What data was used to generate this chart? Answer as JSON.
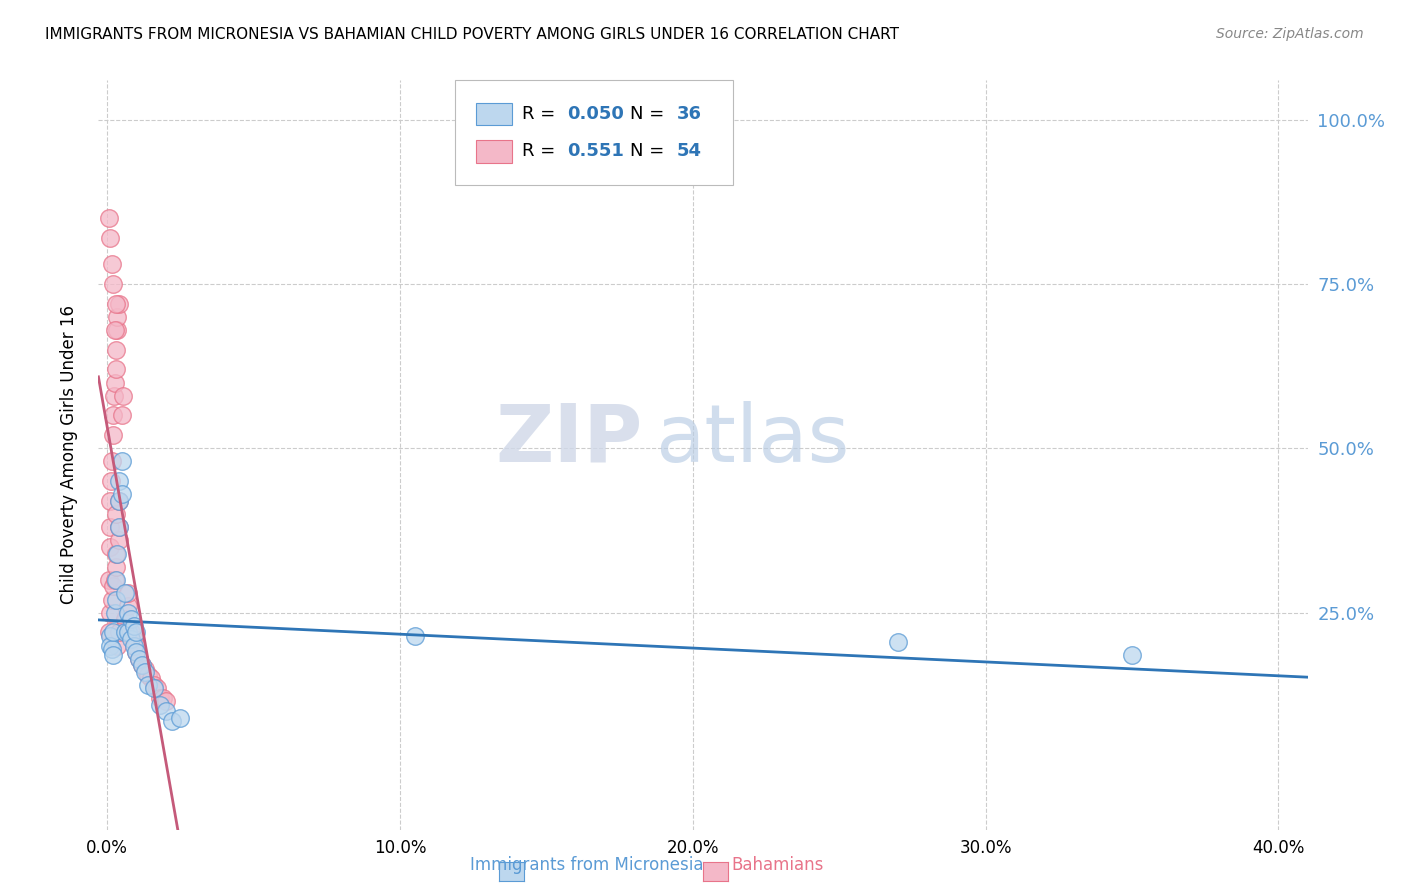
{
  "title": "IMMIGRANTS FROM MICRONESIA VS BAHAMIAN CHILD POVERTY AMONG GIRLS UNDER 16 CORRELATION CHART",
  "source": "Source: ZipAtlas.com",
  "ylabel": "Child Poverty Among Girls Under 16",
  "xlabel_ticks": [
    "0.0%",
    "10.0%",
    "20.0%",
    "30.0%",
    "40.0%"
  ],
  "xlabel_tick_vals": [
    0.0,
    0.1,
    0.2,
    0.3,
    0.4
  ],
  "ylabel_ticks": [
    "100.0%",
    "75.0%",
    "50.0%",
    "25.0%"
  ],
  "ylabel_tick_vals": [
    1.0,
    0.75,
    0.5,
    0.25
  ],
  "xlim": [
    -0.003,
    0.41
  ],
  "ylim": [
    -0.08,
    1.06
  ],
  "blue_color": "#5b9bd5",
  "pink_color": "#e8748a",
  "blue_fill": "#bdd7ee",
  "pink_fill": "#f4b8c8",
  "trend_blue": "#2e75b6",
  "trend_pink": "#c55a7a",
  "watermark_zip": "ZIP",
  "watermark_atlas": "atlas",
  "blue_scatter": [
    [
      0.0008,
      0.215
    ],
    [
      0.001,
      0.2
    ],
    [
      0.0015,
      0.195
    ],
    [
      0.002,
      0.22
    ],
    [
      0.002,
      0.185
    ],
    [
      0.0025,
      0.25
    ],
    [
      0.003,
      0.3
    ],
    [
      0.003,
      0.27
    ],
    [
      0.0035,
      0.34
    ],
    [
      0.004,
      0.42
    ],
    [
      0.004,
      0.45
    ],
    [
      0.004,
      0.38
    ],
    [
      0.005,
      0.48
    ],
    [
      0.005,
      0.43
    ],
    [
      0.006,
      0.22
    ],
    [
      0.006,
      0.28
    ],
    [
      0.007,
      0.25
    ],
    [
      0.007,
      0.22
    ],
    [
      0.008,
      0.24
    ],
    [
      0.008,
      0.21
    ],
    [
      0.009,
      0.23
    ],
    [
      0.009,
      0.2
    ],
    [
      0.01,
      0.22
    ],
    [
      0.01,
      0.19
    ],
    [
      0.011,
      0.18
    ],
    [
      0.012,
      0.17
    ],
    [
      0.013,
      0.16
    ],
    [
      0.014,
      0.14
    ],
    [
      0.016,
      0.135
    ],
    [
      0.018,
      0.11
    ],
    [
      0.02,
      0.1
    ],
    [
      0.022,
      0.085
    ],
    [
      0.025,
      0.09
    ],
    [
      0.105,
      0.215
    ],
    [
      0.27,
      0.205
    ],
    [
      0.35,
      0.185
    ]
  ],
  "pink_scatter": [
    [
      0.0005,
      0.3
    ],
    [
      0.0008,
      0.35
    ],
    [
      0.001,
      0.38
    ],
    [
      0.001,
      0.42
    ],
    [
      0.0012,
      0.45
    ],
    [
      0.0015,
      0.48
    ],
    [
      0.002,
      0.52
    ],
    [
      0.002,
      0.55
    ],
    [
      0.0022,
      0.58
    ],
    [
      0.0025,
      0.6
    ],
    [
      0.003,
      0.62
    ],
    [
      0.003,
      0.65
    ],
    [
      0.0032,
      0.68
    ],
    [
      0.0035,
      0.7
    ],
    [
      0.004,
      0.72
    ],
    [
      0.0005,
      0.22
    ],
    [
      0.001,
      0.25
    ],
    [
      0.0015,
      0.27
    ],
    [
      0.002,
      0.29
    ],
    [
      0.0025,
      0.3
    ],
    [
      0.003,
      0.32
    ],
    [
      0.003,
      0.34
    ],
    [
      0.004,
      0.36
    ],
    [
      0.004,
      0.38
    ],
    [
      0.005,
      0.55
    ],
    [
      0.0055,
      0.58
    ],
    [
      0.006,
      0.22
    ],
    [
      0.006,
      0.24
    ],
    [
      0.007,
      0.26
    ],
    [
      0.007,
      0.28
    ],
    [
      0.008,
      0.22
    ],
    [
      0.009,
      0.21
    ],
    [
      0.01,
      0.2
    ],
    [
      0.01,
      0.19
    ],
    [
      0.011,
      0.18
    ],
    [
      0.012,
      0.17
    ],
    [
      0.013,
      0.165
    ],
    [
      0.014,
      0.155
    ],
    [
      0.015,
      0.15
    ],
    [
      0.016,
      0.14
    ],
    [
      0.017,
      0.135
    ],
    [
      0.018,
      0.12
    ],
    [
      0.019,
      0.12
    ],
    [
      0.02,
      0.115
    ],
    [
      0.0005,
      0.85
    ],
    [
      0.001,
      0.82
    ],
    [
      0.0015,
      0.78
    ],
    [
      0.002,
      0.75
    ],
    [
      0.003,
      0.72
    ],
    [
      0.0025,
      0.68
    ],
    [
      0.003,
      0.4
    ],
    [
      0.004,
      0.42
    ],
    [
      0.0035,
      0.2
    ],
    [
      0.004,
      0.22
    ]
  ],
  "trend_blue_params": [
    0.215,
    0.095
  ],
  "trend_pink_params": [
    0.18,
    18.0
  ]
}
